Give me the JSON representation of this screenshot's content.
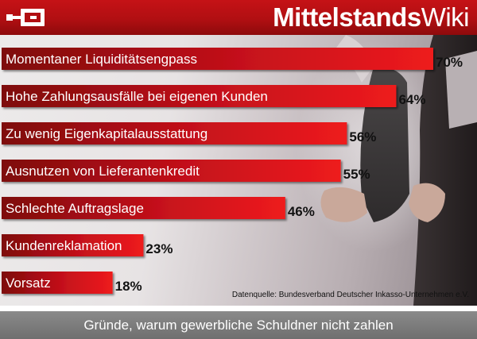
{
  "header": {
    "brand_bold": "Mittelstands",
    "brand_light": "Wiki",
    "logo_icon": "mittelstandswiki-logo-icon"
  },
  "colors": {
    "header_red": "#c51216",
    "bar_red_light": "#ee1b1e",
    "bar_red_dark": "#7e0a0c",
    "footer_gray": "#7a7a7a"
  },
  "chart_data": {
    "type": "bar",
    "orientation": "horizontal",
    "title": "Gründe, warum gewerbliche Schuldner nicht zahlen",
    "categories": [
      "Momentaner Liquiditätsengpass",
      "Hohe Zahlungsausfälle bei eigenen Kunden",
      "Zu wenig Eigenkapitalausstattung",
      "Ausnutzen von Lieferantenkredit",
      "Schlechte Auftragslage",
      "Kundenreklamation",
      "Vorsatz"
    ],
    "values": [
      70,
      64,
      56,
      55,
      46,
      23,
      18
    ],
    "value_labels": [
      "70%",
      "64%",
      "56%",
      "55%",
      "46%",
      "23%",
      "18%"
    ],
    "unit": "%",
    "xlim": [
      0,
      70
    ],
    "grid": false,
    "legend": "none",
    "source_note": "Datenquelle: Bundesverband Deutscher Inkasso-Unternehmen e.V."
  }
}
